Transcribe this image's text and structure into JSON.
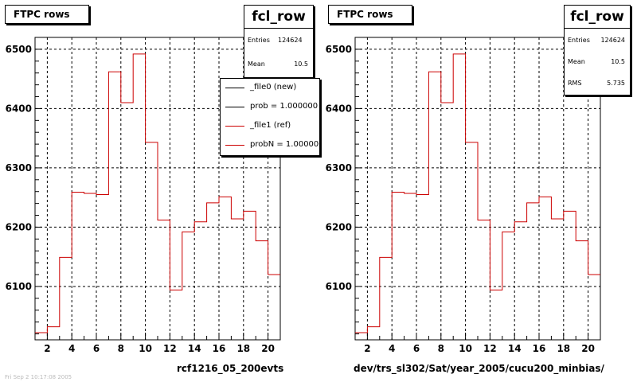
{
  "chart_data": [
    {
      "type": "step",
      "title": "FTPC rows",
      "histogram_name": "fcl_row",
      "stats": [
        {
          "label": "Entries",
          "value": "124624"
        },
        {
          "label": "Mean",
          "value": "10.5"
        }
      ],
      "legend": [
        {
          "label": "_file0 (new)",
          "color": "#000000"
        },
        {
          "label": "prob = 1.000000",
          "color": "#000000"
        },
        {
          "label": "_file1 (ref)",
          "color": "#cc0000"
        },
        {
          "label": "probN = 1.000000",
          "color": "#cc0000"
        }
      ],
      "xlabel": "rcf1216_05_200evts",
      "ylabel": "",
      "xlim": [
        1,
        21
      ],
      "ylim": [
        6010,
        6520
      ],
      "xticks": [
        2,
        4,
        6,
        8,
        10,
        12,
        14,
        16,
        18,
        20
      ],
      "yticks": [
        6100,
        6200,
        6300,
        6400,
        6500
      ],
      "grid": true,
      "bin_edges": [
        1,
        2,
        3,
        4,
        5,
        6,
        7,
        8,
        9,
        10,
        11,
        12,
        13,
        14,
        15,
        16,
        17,
        18,
        19,
        20,
        21
      ],
      "series": [
        {
          "name": "_file1 (ref)",
          "color": "#cc0000",
          "values": [
            6022,
            6032,
            6149,
            6259,
            6257,
            6255,
            6462,
            6410,
            6492,
            6343,
            6212,
            6094,
            6192,
            6209,
            6241,
            6251,
            6214,
            6227,
            6177,
            6120
          ]
        }
      ]
    },
    {
      "type": "step",
      "title": "FTPC rows",
      "histogram_name": "fcl_row",
      "stats": [
        {
          "label": "Entries",
          "value": "124624"
        },
        {
          "label": "Mean",
          "value": "10.5"
        },
        {
          "label": "RMS",
          "value": "5.735"
        }
      ],
      "legend": [],
      "xlabel": "dev/trs_sl302/Sat/year_2005/cucu200_minbias/",
      "ylabel": "",
      "xlim": [
        1,
        21
      ],
      "ylim": [
        6010,
        6520
      ],
      "xticks": [
        2,
        4,
        6,
        8,
        10,
        12,
        14,
        16,
        18,
        20
      ],
      "yticks": [
        6100,
        6200,
        6300,
        6400,
        6500
      ],
      "grid": true,
      "bin_edges": [
        1,
        2,
        3,
        4,
        5,
        6,
        7,
        8,
        9,
        10,
        11,
        12,
        13,
        14,
        15,
        16,
        17,
        18,
        19,
        20,
        21
      ],
      "series": [
        {
          "name": "",
          "color": "#cc0000",
          "values": [
            6022,
            6032,
            6149,
            6259,
            6257,
            6255,
            6462,
            6410,
            6492,
            6343,
            6212,
            6094,
            6192,
            6209,
            6241,
            6251,
            6214,
            6227,
            6177,
            6120
          ]
        }
      ]
    }
  ],
  "footer": "Fri Sep  2 10:17:08 2005"
}
